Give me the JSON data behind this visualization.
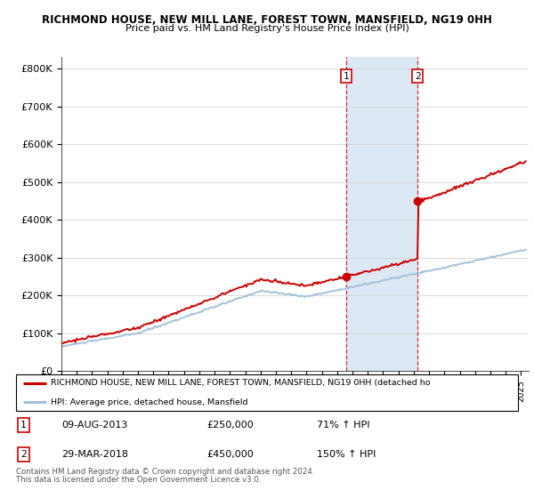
{
  "title1": "RICHMOND HOUSE, NEW MILL LANE, FOREST TOWN, MANSFIELD, NG19 0HH",
  "title2": "Price paid vs. HM Land Registry's House Price Index (HPI)",
  "ylabel_ticks": [
    "£0",
    "£100K",
    "£200K",
    "£300K",
    "£400K",
    "£500K",
    "£600K",
    "£700K",
    "£800K"
  ],
  "ytick_values": [
    0,
    100000,
    200000,
    300000,
    400000,
    500000,
    600000,
    700000,
    800000
  ],
  "ylim": [
    0,
    830000
  ],
  "hpi_color": "#a0bfd8",
  "price_color": "#cc0000",
  "bg_shade_color": "#dce9f5",
  "transaction1_x": 2013.6,
  "transaction1_price": 250000,
  "transaction1_pct": "71%",
  "transaction2_x": 2018.25,
  "transaction2_price": 450000,
  "transaction2_pct": "150%",
  "transaction1_date": "09-AUG-2013",
  "transaction2_date": "29-MAR-2018",
  "legend_line1": "RICHMOND HOUSE, NEW MILL LANE, FOREST TOWN, MANSFIELD, NG19 0HH (detached ho",
  "legend_line2": "HPI: Average price, detached house, Mansfield",
  "footer1": "Contains HM Land Registry data © Crown copyright and database right 2024.",
  "footer2": "This data is licensed under the Open Government Licence v3.0.",
  "xmin": 1995,
  "xmax": 2025.5
}
